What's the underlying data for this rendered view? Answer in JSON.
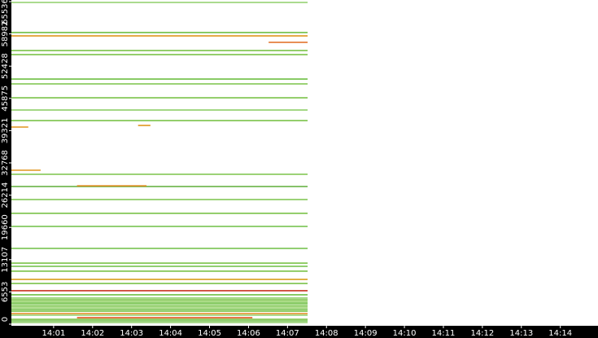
{
  "chart_data": {
    "type": "segments",
    "xlim": [
      "13:59:55",
      "14:14:58"
    ],
    "ylim": [
      0,
      65536
    ],
    "xticks": [
      "14:01",
      "14:02",
      "14:03",
      "14:04",
      "14:05",
      "14:06",
      "14:07",
      "14:08",
      "14:09",
      "14:10",
      "14:11",
      "14:12",
      "14:13",
      "14:14"
    ],
    "yticks": [
      0,
      6553,
      13107,
      19660,
      26214,
      32768,
      39321,
      45875,
      52428,
      58982,
      65536
    ],
    "flows": [
      {
        "port": 65370,
        "start": "13:59:55",
        "end": "14:07:31",
        "color": "#8fcf6a"
      },
      {
        "port": 59250,
        "start": "13:59:55",
        "end": "14:07:31",
        "color": "#6fbf45"
      },
      {
        "port": 58580,
        "start": "13:59:55",
        "end": "14:07:31",
        "color": "#e0961e"
      },
      {
        "port": 57260,
        "start": "14:06:31",
        "end": "14:07:31",
        "color": "#e06a1e"
      },
      {
        "port": 55600,
        "start": "13:59:55",
        "end": "14:07:31",
        "color": "#7cc34a"
      },
      {
        "port": 54770,
        "start": "13:59:55",
        "end": "14:07:31",
        "color": "#7cc34a"
      },
      {
        "port": 49810,
        "start": "13:59:55",
        "end": "14:07:31",
        "color": "#6fbf45"
      },
      {
        "port": 48820,
        "start": "13:59:55",
        "end": "14:07:31",
        "color": "#7cc34a"
      },
      {
        "port": 46000,
        "start": "13:59:55",
        "end": "14:07:31",
        "color": "#7cc34a"
      },
      {
        "port": 43520,
        "start": "13:59:55",
        "end": "14:07:31",
        "color": "#8fcf6a"
      },
      {
        "port": 41370,
        "start": "13:59:55",
        "end": "14:07:31",
        "color": "#7cc34a"
      },
      {
        "port": 40050,
        "start": "13:59:55",
        "end": "14:00:21",
        "color": "#e0961e"
      },
      {
        "port": 40380,
        "start": "14:03:10",
        "end": "14:03:29",
        "color": "#e0961e"
      },
      {
        "port": 31280,
        "start": "13:59:55",
        "end": "14:00:40",
        "color": "#e0961e"
      },
      {
        "port": 30450,
        "start": "13:59:55",
        "end": "14:07:31",
        "color": "#7cc34a"
      },
      {
        "port": 27970,
        "start": "13:59:55",
        "end": "14:07:31",
        "color": "#5fae38"
      },
      {
        "port": 28100,
        "start": "14:01:36",
        "end": "14:03:23",
        "color": "#d98a1e"
      },
      {
        "port": 25320,
        "start": "13:59:55",
        "end": "14:07:31",
        "color": "#7cc34a"
      },
      {
        "port": 22510,
        "start": "13:59:55",
        "end": "14:07:31",
        "color": "#7cc34a"
      },
      {
        "port": 19860,
        "start": "13:59:55",
        "end": "14:07:31",
        "color": "#6fbf45"
      },
      {
        "port": 15390,
        "start": "13:59:55",
        "end": "14:07:31",
        "color": "#6fbf45"
      },
      {
        "port": 12410,
        "start": "13:59:55",
        "end": "14:07:31",
        "color": "#7cc34a"
      },
      {
        "port": 11750,
        "start": "13:59:55",
        "end": "14:07:31",
        "color": "#6fbf45"
      },
      {
        "port": 10760,
        "start": "13:59:55",
        "end": "14:07:31",
        "color": "#7cc34a"
      },
      {
        "port": 9100,
        "start": "13:59:55",
        "end": "14:07:31",
        "color": "#d9a01e"
      },
      {
        "port": 8270,
        "start": "13:59:55",
        "end": "14:07:31",
        "color": "#7cc34a"
      },
      {
        "port": 6790,
        "start": "13:59:55",
        "end": "14:07:31",
        "color": "#c8321e"
      },
      {
        "port": 5960,
        "start": "13:59:55",
        "end": "14:07:31",
        "color": "#6fbf45"
      },
      {
        "port": 5300,
        "start": "13:59:55",
        "end": "14:07:31",
        "color": "#8fcf6a"
      },
      {
        "port": 4960,
        "start": "13:59:55",
        "end": "14:07:31",
        "color": "#7cc34a"
      },
      {
        "port": 4630,
        "start": "13:59:55",
        "end": "14:07:31",
        "color": "#9ad46e"
      },
      {
        "port": 4300,
        "start": "13:59:55",
        "end": "14:07:31",
        "color": "#6fbf45"
      },
      {
        "port": 3970,
        "start": "13:59:55",
        "end": "14:07:31",
        "color": "#8fcf6a"
      },
      {
        "port": 3640,
        "start": "13:59:55",
        "end": "14:07:31",
        "color": "#7cc34a"
      },
      {
        "port": 3310,
        "start": "13:59:55",
        "end": "14:07:31",
        "color": "#9ad46e"
      },
      {
        "port": 2980,
        "start": "13:59:55",
        "end": "14:07:31",
        "color": "#6fbf45"
      },
      {
        "port": 2150,
        "start": "13:59:55",
        "end": "14:07:31",
        "color": "#e08a1e"
      },
      {
        "port": 2640,
        "start": "13:59:55",
        "end": "14:07:31",
        "color": "#7cc34a"
      },
      {
        "port": 1820,
        "start": "13:59:55",
        "end": "14:07:31",
        "color": "#8fcf6a"
      },
      {
        "port": 1320,
        "start": "14:01:36",
        "end": "14:06:06",
        "color": "#e0561e"
      },
      {
        "port": 990,
        "start": "13:59:55",
        "end": "14:07:31",
        "color": "#7cc34a"
      },
      {
        "port": 660,
        "start": "13:59:55",
        "end": "14:07:31",
        "color": "#6fbf45"
      },
      {
        "port": 330,
        "start": "13:59:55",
        "end": "14:07:31",
        "color": "#8fcf6a"
      }
    ]
  }
}
